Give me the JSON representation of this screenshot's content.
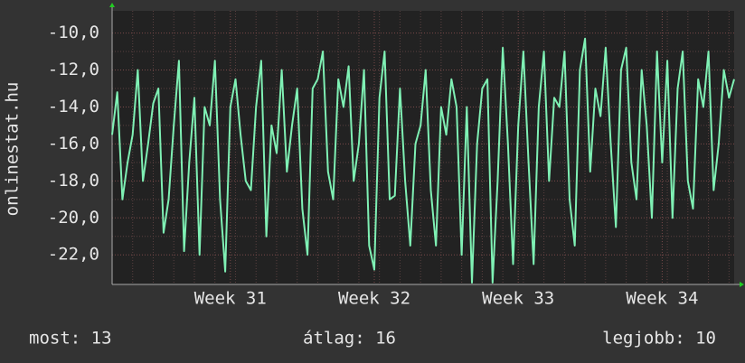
{
  "chart_data": {
    "type": "line",
    "y_label": "onlinestat.hu",
    "categories": [
      null,
      null,
      null,
      null,
      null,
      null,
      null,
      null,
      null,
      null,
      null,
      null,
      null,
      null,
      null,
      null,
      null,
      null,
      null,
      null,
      null,
      null,
      null,
      "Week 31",
      null,
      null,
      null,
      null,
      null,
      null,
      null,
      null,
      null,
      null,
      null,
      null,
      null,
      null,
      null,
      null,
      null,
      null,
      null,
      null,
      null,
      null,
      null,
      null,
      null,
      null,
      null,
      "Week 32",
      null,
      null,
      null,
      null,
      null,
      null,
      null,
      null,
      null,
      null,
      null,
      null,
      null,
      null,
      null,
      null,
      null,
      null,
      null,
      null,
      null,
      null,
      null,
      null,
      null,
      null,
      null,
      "Week 33",
      null,
      null,
      null,
      null,
      null,
      null,
      null,
      null,
      null,
      null,
      null,
      null,
      null,
      null,
      null,
      null,
      null,
      null,
      null,
      null,
      null,
      null,
      null,
      null,
      null,
      null,
      null,
      "Week 34",
      null,
      null,
      null,
      null,
      null,
      null,
      null,
      null,
      null,
      null,
      null,
      null,
      null,
      null
    ],
    "series": [
      {
        "color": "#7ff0b4",
        "values": [
          -15.5,
          -13.2,
          -19,
          -17,
          -15.5,
          -12,
          -18,
          -16,
          -13.8,
          -13,
          -20.8,
          -19,
          -15,
          -11.5,
          -21.8,
          -17,
          -13.5,
          -22,
          -14,
          -15,
          -11.5,
          -19,
          -22.9,
          -14,
          -12.5,
          -15.5,
          -18,
          -18.5,
          -14,
          -11.5,
          -21,
          -15,
          -16.5,
          -12,
          -17.5,
          -15,
          -13,
          -19.5,
          -22,
          -13,
          -12.5,
          -11,
          -17.5,
          -19,
          -12.5,
          -14,
          -11.8,
          -18,
          -16,
          -12,
          -21.5,
          -22.8,
          -13.5,
          -11,
          -19,
          -18.8,
          -13,
          -18,
          -21.5,
          -16,
          -15,
          -12,
          -18.5,
          -21.5,
          -14,
          -15.5,
          -12.5,
          -14,
          -22,
          -14,
          -23.5,
          -16,
          -13,
          -12.5,
          -23.5,
          -18,
          -10.8,
          -16,
          -22.5,
          -15,
          -11,
          -17,
          -22.5,
          -14,
          -11,
          -18,
          -13.5,
          -14,
          -11,
          -19,
          -21.5,
          -12,
          -10.3,
          -17.5,
          -13,
          -14.5,
          -10.8,
          -16,
          -20.5,
          -12,
          -10.8,
          -17,
          -19,
          -12,
          -15,
          -20,
          -11,
          -17,
          -11.5,
          -20,
          -13,
          -11,
          -18,
          -19.5,
          -12.5,
          -14,
          -11,
          -18.5,
          -16,
          -12,
          -13.5,
          -12.5
        ]
      }
    ],
    "ylim": [
      -23.6,
      -8.8
    ],
    "yticks": [
      {
        "value": -22,
        "label": "-22,0"
      },
      {
        "value": -20,
        "label": "-20,0"
      },
      {
        "value": -18,
        "label": "-18,0"
      },
      {
        "value": -16,
        "label": "-16,0"
      },
      {
        "value": -14,
        "label": "-14,0"
      },
      {
        "value": -12,
        "label": "-12,0"
      },
      {
        "value": -10,
        "label": "-10,0"
      }
    ],
    "grid": true,
    "footer": {
      "current": "most: 13",
      "average": "átlag: 16",
      "best": "legjobb: 10"
    }
  }
}
